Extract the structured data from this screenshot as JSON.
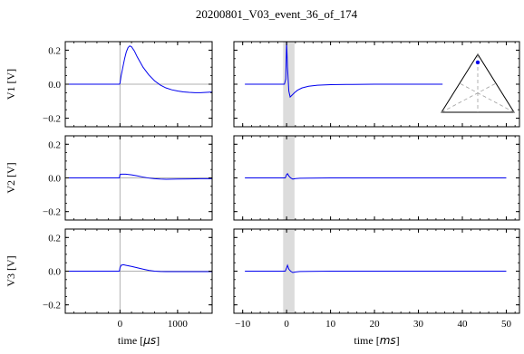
{
  "chart_data": {
    "type": "line",
    "title": "20200801_V03_event_36_of_174",
    "left_panels": {
      "xlabel_prefix": "time [",
      "xlabel_unit": "μs",
      "xlabel_suffix": "]",
      "xlim": [
        -950,
        1600
      ],
      "xticks": [
        0,
        1000
      ]
    },
    "right_panels": {
      "xlabel_prefix": "time [",
      "xlabel_unit": "ms",
      "xlabel_suffix": "]",
      "xlim": [
        -12,
        53
      ],
      "xticks": [
        -10,
        0,
        10,
        20,
        30,
        40,
        50
      ],
      "shaded_span": [
        -0.8,
        1.8
      ]
    },
    "ylim": [
      -0.25,
      0.25
    ],
    "yticks": [
      -0.2,
      0.0,
      0.2
    ],
    "line_color": "#0000ee",
    "shade_color": "#dcdcdc",
    "rows": [
      {
        "ylabel": "V1 [V]",
        "left": {
          "x": [
            -950,
            -100,
            -10,
            0,
            20,
            50,
            80,
            110,
            140,
            170,
            200,
            250,
            300,
            400,
            500,
            600,
            700,
            800,
            900,
            1000,
            1100,
            1200,
            1300,
            1400,
            1500,
            1600
          ],
          "y": [
            0.0,
            0.0,
            0.0,
            0.005,
            0.05,
            0.1,
            0.15,
            0.19,
            0.215,
            0.225,
            0.22,
            0.195,
            0.16,
            0.1,
            0.055,
            0.02,
            -0.005,
            -0.022,
            -0.033,
            -0.04,
            -0.045,
            -0.048,
            -0.05,
            -0.05,
            -0.048,
            -0.046
          ]
        },
        "right": {
          "x": [
            -9.5,
            -0.5,
            -0.2,
            0.0,
            0.2,
            0.5,
            0.8,
            1.2,
            1.8,
            2.5,
            3.5,
            5,
            7,
            10,
            15,
            20,
            25,
            30,
            35.5
          ],
          "y": [
            0.0,
            0.0,
            0.03,
            0.25,
            0.1,
            -0.04,
            -0.075,
            -0.065,
            -0.05,
            -0.035,
            -0.022,
            -0.012,
            -0.006,
            -0.003,
            -0.001,
            0.0,
            0.0,
            0.0,
            0.0
          ]
        }
      },
      {
        "ylabel": "V2 [V]",
        "left": {
          "x": [
            -950,
            -10,
            0,
            20,
            100,
            200,
            300,
            400,
            500,
            600,
            700,
            800,
            1000,
            1200,
            1400,
            1600
          ],
          "y": [
            0.0,
            0.0,
            0.02,
            0.022,
            0.022,
            0.018,
            0.012,
            0.005,
            -0.001,
            -0.005,
            -0.007,
            -0.008,
            -0.007,
            -0.006,
            -0.005,
            -0.005
          ]
        },
        "right": {
          "x": [
            -9.5,
            -0.3,
            0.0,
            0.2,
            0.5,
            0.9,
            1.4,
            2.0,
            3,
            5,
            10,
            20,
            30,
            40,
            50
          ],
          "y": [
            0.0,
            0.0,
            0.02,
            0.025,
            0.012,
            0.0,
            -0.007,
            -0.004,
            -0.002,
            -0.001,
            0.0,
            0.0,
            0.0,
            0.0,
            0.0
          ]
        }
      },
      {
        "ylabel": "V3 [V]",
        "left": {
          "x": [
            -950,
            -10,
            0,
            20,
            60,
            100,
            200,
            300,
            400,
            500,
            600,
            700,
            800,
            1000,
            1200,
            1400,
            1600
          ],
          "y": [
            0.0,
            0.0,
            0.02,
            0.035,
            0.038,
            0.035,
            0.028,
            0.02,
            0.012,
            0.005,
            0.0,
            -0.002,
            -0.003,
            -0.003,
            -0.003,
            -0.003,
            -0.003
          ]
        },
        "right": {
          "x": [
            -9.5,
            -0.3,
            0.0,
            0.2,
            0.5,
            0.9,
            1.4,
            2.0,
            3,
            5,
            10,
            20,
            30,
            40,
            50
          ],
          "y": [
            0.0,
            0.0,
            0.02,
            0.035,
            0.012,
            0.0,
            -0.008,
            -0.005,
            -0.002,
            -0.001,
            0.0,
            0.0,
            0.0,
            0.0,
            0.0
          ]
        }
      }
    ],
    "inset": {
      "dot_color": "#0000ee",
      "dot_position": [
        0.5,
        0.86
      ]
    }
  }
}
